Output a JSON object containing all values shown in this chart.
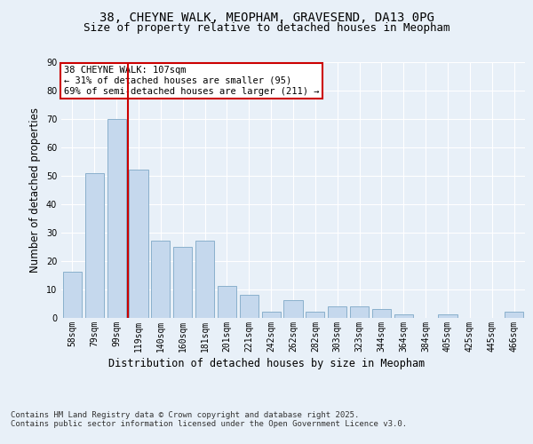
{
  "title_line1": "38, CHEYNE WALK, MEOPHAM, GRAVESEND, DA13 0PG",
  "title_line2": "Size of property relative to detached houses in Meopham",
  "xlabel": "Distribution of detached houses by size in Meopham",
  "ylabel": "Number of detached properties",
  "categories": [
    "58sqm",
    "79sqm",
    "99sqm",
    "119sqm",
    "140sqm",
    "160sqm",
    "181sqm",
    "201sqm",
    "221sqm",
    "242sqm",
    "262sqm",
    "282sqm",
    "303sqm",
    "323sqm",
    "344sqm",
    "364sqm",
    "384sqm",
    "405sqm",
    "425sqm",
    "445sqm",
    "466sqm"
  ],
  "values": [
    16,
    51,
    70,
    52,
    27,
    25,
    27,
    11,
    8,
    2,
    6,
    2,
    4,
    4,
    3,
    1,
    0,
    1,
    0,
    0,
    2
  ],
  "bar_color": "#c5d8ed",
  "bar_edge_color": "#8ab0cc",
  "vline_x": 2.5,
  "vline_color": "#cc0000",
  "annotation_text": "38 CHEYNE WALK: 107sqm\n← 31% of detached houses are smaller (95)\n69% of semi-detached houses are larger (211) →",
  "annotation_box_color": "#ffffff",
  "annotation_box_edge_color": "#cc0000",
  "ylim": [
    0,
    90
  ],
  "yticks": [
    0,
    10,
    20,
    30,
    40,
    50,
    60,
    70,
    80,
    90
  ],
  "footer_text": "Contains HM Land Registry data © Crown copyright and database right 2025.\nContains public sector information licensed under the Open Government Licence v3.0.",
  "bg_color": "#e8f0f8",
  "plot_bg_color": "#e8f0f8",
  "grid_color": "#ffffff",
  "title_fontsize": 10,
  "subtitle_fontsize": 9,
  "axis_label_fontsize": 8.5,
  "tick_fontsize": 7,
  "footer_fontsize": 6.5,
  "annotation_fontsize": 7.5
}
